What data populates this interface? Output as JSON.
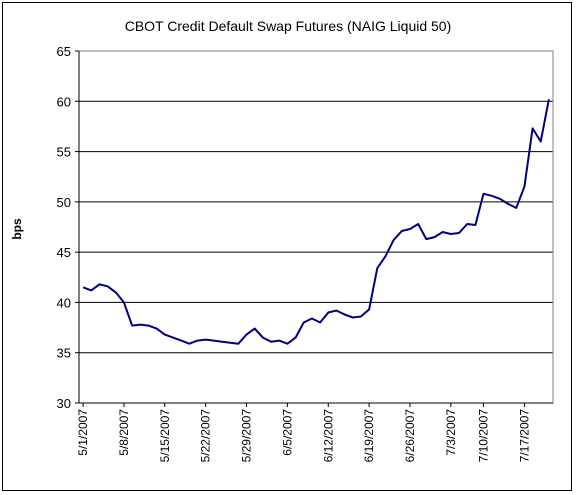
{
  "chart_data": {
    "type": "line",
    "title": "CBOT Credit Default Swap Futures (NAIG Liquid 50)",
    "xlabel": "",
    "ylabel": "bps",
    "ylim": [
      30,
      65
    ],
    "yticks": [
      "30",
      "35",
      "40",
      "45",
      "50",
      "55",
      "60",
      "65"
    ],
    "grid": true,
    "legend": "none",
    "line_color": "#000080",
    "xtick_labels": [
      "5/1/2007",
      "5/8/2007",
      "5/15/2007",
      "5/22/2007",
      "5/29/2007",
      "6/5/2007",
      "6/12/2007",
      "6/19/2007",
      "6/26/2007",
      "7/3/2007",
      "7/10/2007",
      "7/17/2007"
    ],
    "x": [
      "2007-05-01",
      "2007-05-02",
      "2007-05-03",
      "2007-05-04",
      "2007-05-07",
      "2007-05-08",
      "2007-05-09",
      "2007-05-10",
      "2007-05-11",
      "2007-05-14",
      "2007-05-15",
      "2007-05-16",
      "2007-05-17",
      "2007-05-18",
      "2007-05-21",
      "2007-05-22",
      "2007-05-23",
      "2007-05-24",
      "2007-05-25",
      "2007-05-28",
      "2007-05-29",
      "2007-05-30",
      "2007-05-31",
      "2007-06-01",
      "2007-06-04",
      "2007-06-05",
      "2007-06-06",
      "2007-06-07",
      "2007-06-08",
      "2007-06-11",
      "2007-06-12",
      "2007-06-13",
      "2007-06-14",
      "2007-06-15",
      "2007-06-18",
      "2007-06-19",
      "2007-06-20",
      "2007-06-21",
      "2007-06-22",
      "2007-06-25",
      "2007-06-26",
      "2007-06-27",
      "2007-06-28",
      "2007-06-29",
      "2007-07-02",
      "2007-07-03",
      "2007-07-05",
      "2007-07-06",
      "2007-07-09",
      "2007-07-10",
      "2007-07-11",
      "2007-07-12",
      "2007-07-13",
      "2007-07-16",
      "2007-07-17",
      "2007-07-18",
      "2007-07-19",
      "2007-07-20"
    ],
    "series": [
      {
        "values": [
          41.5,
          41.2,
          41.8,
          41.6,
          41.0,
          40.0,
          37.7,
          37.8,
          37.7,
          37.4,
          36.8,
          36.5,
          36.2,
          35.9,
          36.2,
          36.3,
          36.2,
          36.1,
          36.0,
          35.9,
          36.8,
          37.4,
          36.5,
          36.1,
          36.2,
          35.9,
          36.5,
          38.0,
          38.4,
          38.0,
          39.0,
          39.2,
          38.8,
          38.5,
          38.6,
          39.3,
          43.4,
          44.6,
          46.2,
          47.1,
          47.3,
          47.8,
          46.3,
          46.5,
          47.0,
          46.8,
          46.9,
          47.8,
          47.7,
          50.8,
          50.6,
          50.3,
          49.8,
          49.4,
          51.5,
          57.3,
          56.0,
          60.2
        ]
      }
    ]
  }
}
